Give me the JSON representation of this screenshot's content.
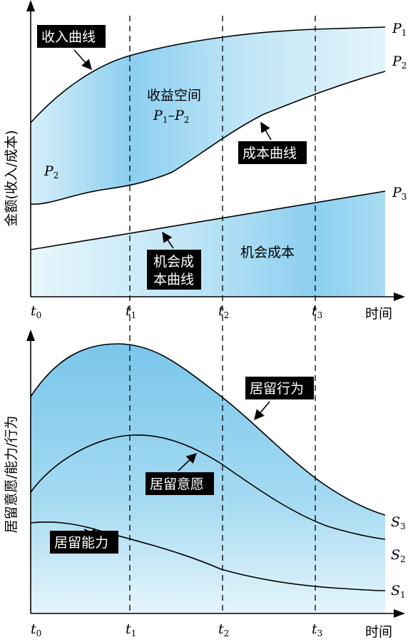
{
  "top_panel": {
    "y_axis_label": "金额(收入/成本)",
    "time_label": "时间",
    "ticks": [
      {
        "base": "t",
        "sub": "0"
      },
      {
        "base": "t",
        "sub": "1"
      },
      {
        "base": "t",
        "sub": "2"
      },
      {
        "base": "t",
        "sub": "3"
      }
    ],
    "curve_ends": [
      {
        "base": "P",
        "sub": "1"
      },
      {
        "base": "P",
        "sub": "2"
      },
      {
        "base": "P",
        "sub": "3"
      }
    ],
    "p2_start": {
      "base": "P",
      "sub": "2"
    },
    "revenue_curve_label": "收入曲线",
    "cost_curve_label": "成本曲线",
    "profit_space": {
      "title": "收益空间",
      "formula": {
        "a": "P",
        "a_sub": "1",
        "dash": "–",
        "b": "P",
        "b_sub": "2"
      }
    },
    "opportunity_cost_curve_label": {
      "line1": "机会成",
      "line2": "本曲线"
    },
    "opportunity_cost_area_label": "机会成本"
  },
  "bottom_panel": {
    "y_axis_label": "居留意愿/能力/行为",
    "time_label": "时间",
    "ticks": [
      {
        "base": "t",
        "sub": "0"
      },
      {
        "base": "t",
        "sub": "1"
      },
      {
        "base": "t",
        "sub": "2"
      },
      {
        "base": "t",
        "sub": "3"
      }
    ],
    "curve_ends": [
      {
        "base": "S",
        "sub": "3"
      },
      {
        "base": "S",
        "sub": "2"
      },
      {
        "base": "S",
        "sub": "1"
      }
    ],
    "behavior_label": "居留行为",
    "willingness_label": "居留意愿",
    "ability_label": "居留能力"
  },
  "colors": {
    "fill_light": "#e4f4fb",
    "fill_mid": "#a9dcf2",
    "fill_deep": "#7fc9ec",
    "ink": "#000000"
  }
}
